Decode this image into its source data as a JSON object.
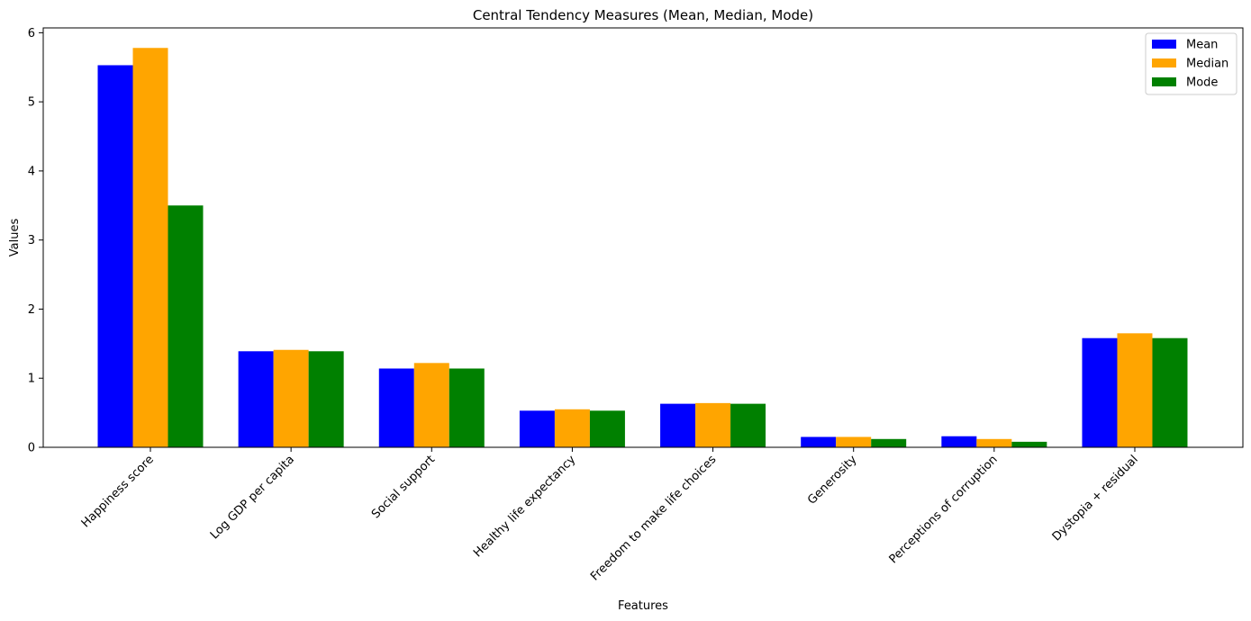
{
  "chart_data": {
    "type": "bar",
    "title": "Central Tendency Measures (Mean, Median, Mode)",
    "xlabel": "Features",
    "ylabel": "Values",
    "categories": [
      "Happiness score",
      "Log GDP per capita",
      "Social support",
      "Healthy life expectancy",
      "Freedom to make life choices",
      "Generosity",
      "Perceptions of corruption",
      "Dystopia + residual"
    ],
    "series": [
      {
        "name": "Mean",
        "color": "#0000ff",
        "values": [
          5.53,
          1.39,
          1.14,
          0.53,
          0.63,
          0.15,
          0.16,
          1.58
        ]
      },
      {
        "name": "Median",
        "color": "#ffa500",
        "values": [
          5.78,
          1.41,
          1.22,
          0.55,
          0.64,
          0.15,
          0.12,
          1.65
        ]
      },
      {
        "name": "Mode",
        "color": "#008000",
        "values": [
          3.5,
          1.39,
          1.14,
          0.53,
          0.63,
          0.12,
          0.08,
          1.58
        ]
      }
    ],
    "yticks": [
      0,
      1,
      2,
      3,
      4,
      5,
      6
    ],
    "ylim": [
      0,
      6.07
    ],
    "grid": false,
    "legend": "top-right"
  }
}
